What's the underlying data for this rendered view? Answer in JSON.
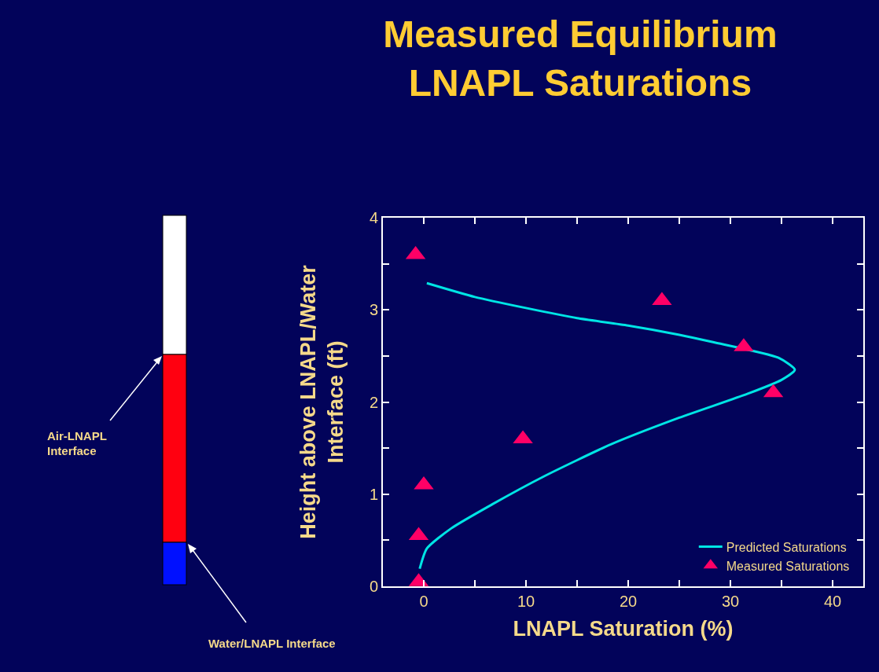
{
  "chart_data": {
    "type": "scatter",
    "title": "Measured Equilibrium\nLNAPL Saturations",
    "xlabel": "LNAPL Saturation (%)",
    "ylabel": "Height above LNAPL/Water\nInterface (ft)",
    "series": [
      {
        "name": "Predicted Saturations",
        "type": "line",
        "color": "#00e5e5",
        "marker": "none",
        "line_style": "solid",
        "x": [
          0.3,
          5,
          10,
          15,
          20,
          25,
          28.3,
          34.7,
          36.3,
          35,
          31.7,
          25,
          18.3,
          11.7,
          6.7,
          2.7,
          0.3,
          -0.4
        ],
        "values": [
          3.29,
          3.14,
          3.02,
          2.91,
          2.83,
          2.73,
          2.65,
          2.48,
          2.35,
          2.24,
          2.09,
          1.83,
          1.54,
          1.19,
          0.89,
          0.63,
          0.41,
          0.19
        ]
      },
      {
        "name": "Measured Saturations",
        "type": "scatter",
        "color": "#ff0066",
        "marker": "triangle",
        "x": [
          -0.8,
          23.3,
          31.3,
          34.2,
          9.7,
          0,
          -0.5,
          -0.5
        ],
        "values": [
          3.6,
          3.1,
          2.6,
          2.1,
          1.6,
          1.1,
          0.55,
          0.05
        ]
      }
    ],
    "xlim": [
      -4,
      43
    ],
    "xticks": [
      0,
      {
        "value": 5,
        "label": null
      },
      10,
      {
        "value": 15,
        "label": null
      },
      20,
      {
        "value": 25,
        "label": null
      },
      30,
      {
        "value": 35,
        "label": null
      },
      40
    ],
    "ylim": [
      0,
      4
    ],
    "yticks": [
      0,
      {
        "value": 0.5,
        "label": null
      },
      1,
      {
        "value": 1.5,
        "label": null
      },
      2,
      {
        "value": 2.5,
        "label": null
      },
      3,
      {
        "value": 3.5,
        "label": null
      },
      4
    ],
    "grid": false,
    "legend": "bottom right",
    "annotations": [
      "Air-LNAPL\nInterface",
      "Water/LNAPL Interface"
    ]
  }
}
